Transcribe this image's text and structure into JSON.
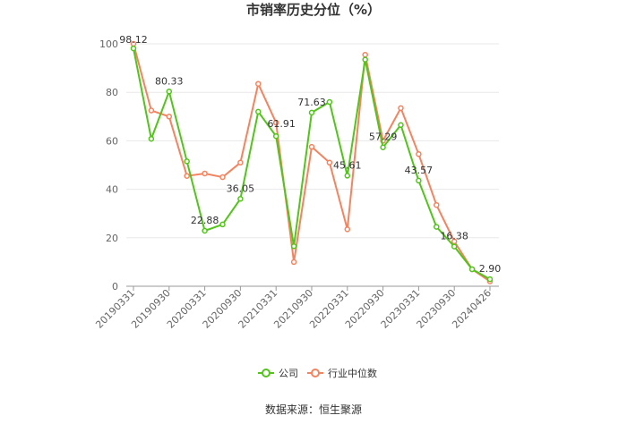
{
  "chart_data": {
    "type": "line",
    "title": "市销率历史分位（%）",
    "xlabel": "",
    "ylabel": "",
    "ylim": [
      0,
      100
    ],
    "yticks": [
      0,
      20,
      40,
      60,
      80,
      100
    ],
    "grid": true,
    "legend_position": "bottom",
    "x_tick_labels": [
      "20190331",
      "20190930",
      "20200331",
      "20200930",
      "20210331",
      "20210930",
      "20220331",
      "20220930",
      "20230331",
      "20230930",
      "20240426"
    ],
    "series": [
      {
        "name": "公司",
        "color": "#52c41a",
        "values": [
          98.12,
          60.8,
          80.33,
          51.5,
          22.88,
          25.5,
          36.05,
          72.0,
          61.91,
          16.5,
          71.63,
          76.0,
          45.61,
          93.5,
          57.29,
          66.5,
          43.57,
          24.5,
          16.38,
          7.0,
          2.9
        ],
        "labeled": {
          "0": "98.12",
          "2": "80.33",
          "4": "22.88",
          "6": "36.05",
          "8": "61.91",
          "10": "71.63",
          "12": "45.61",
          "14": "57.29",
          "16": "43.57",
          "18": "16.38",
          "20": "2.90"
        }
      },
      {
        "name": "行业中位数",
        "color": "#f4845f",
        "values": [
          100.0,
          72.5,
          70.0,
          45.5,
          46.5,
          45.0,
          51.0,
          83.5,
          67.5,
          10.0,
          57.5,
          51.0,
          23.5,
          95.5,
          60.0,
          73.5,
          54.5,
          33.5,
          18.5,
          7.0,
          2.0
        ]
      }
    ]
  },
  "footer": {
    "source": "数据来源：恒生聚源"
  }
}
